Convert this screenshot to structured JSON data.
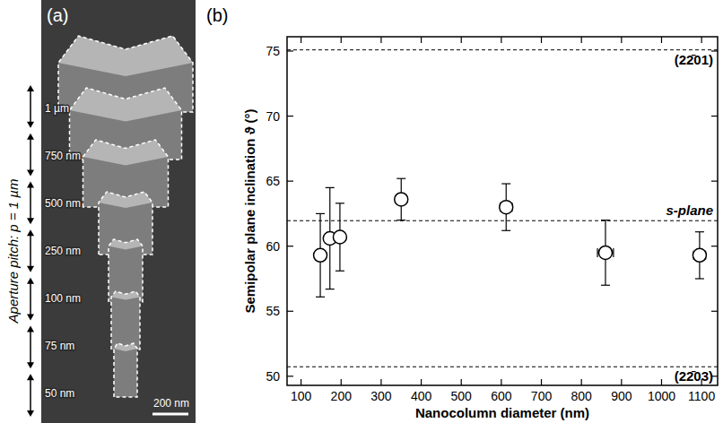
{
  "chart_data": {
    "type": "scatter",
    "panel_label": "(b)",
    "x_label": "Nanocolumn diameter (nm)",
    "y_label": "Semipolar plane inclination ϑ (°)",
    "x": [
      148,
      172,
      197,
      350,
      612,
      860,
      1095
    ],
    "values": [
      59.3,
      60.6,
      60.7,
      63.6,
      63.0,
      59.5,
      59.3
    ],
    "x_errors": [
      8,
      10,
      10,
      10,
      15,
      20,
      15
    ],
    "y_errors": [
      3.2,
      3.9,
      2.6,
      1.6,
      1.8,
      2.5,
      1.8
    ],
    "color": "#000000",
    "marker": "circle",
    "xlim": [
      65,
      1140
    ],
    "ylim": [
      49.3,
      76.1
    ],
    "xticks": [
      100,
      200,
      300,
      400,
      500,
      600,
      700,
      800,
      900,
      1000,
      1100
    ],
    "yticks": [
      50,
      55,
      60,
      65,
      70,
      75
    ],
    "grid": false,
    "reference_lines": [
      {
        "value": 75.09,
        "label": "(22̄01)",
        "line_style": "dashed"
      },
      {
        "value": 61.96,
        "label": "s-plane",
        "line_style": "dashed"
      },
      {
        "value": 50.73,
        "label": "(22̄03)",
        "line_style": "dashed"
      }
    ]
  },
  "panel_a": {
    "label": "(a)",
    "pitch_label": "Aperture pitch: p = 1 µm",
    "diameter_labels": [
      "1 µm",
      "750 nm",
      "500 nm",
      "250 nm",
      "100 nm",
      "75 nm",
      "50 nm"
    ],
    "scale_bar": "200 nm"
  }
}
